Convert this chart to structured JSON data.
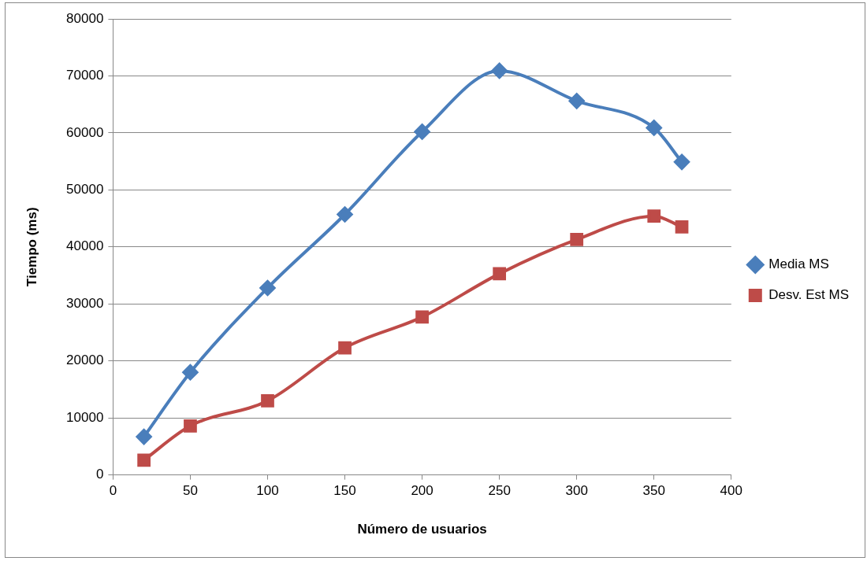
{
  "chart_data": {
    "type": "line",
    "xlabel": "Número de usuarios",
    "ylabel": "Tiempo (ms)",
    "xlim": [
      0,
      400
    ],
    "xticks": [
      0,
      50,
      100,
      150,
      200,
      250,
      300,
      350,
      400
    ],
    "ylim": [
      0,
      80000
    ],
    "yticks": [
      0,
      10000,
      20000,
      30000,
      40000,
      50000,
      60000,
      70000,
      80000
    ],
    "grid": "y",
    "legend": "right",
    "line_style": "solid",
    "series": [
      {
        "name": "Media MS",
        "color": "#4a7ebb",
        "marker": "diamond",
        "x": [
          20,
          50,
          100,
          150,
          200,
          250,
          300,
          350,
          368
        ],
        "values": [
          6700,
          18000,
          32800,
          45700,
          60200,
          70900,
          65600,
          60900,
          54900
        ]
      },
      {
        "name": "Desv. Est MS",
        "color": "#be4b48",
        "marker": "square",
        "x": [
          20,
          50,
          100,
          150,
          200,
          250,
          300,
          350,
          368
        ],
        "values": [
          2600,
          8600,
          13000,
          22300,
          27700,
          35300,
          41300,
          45400,
          43500
        ]
      }
    ]
  }
}
